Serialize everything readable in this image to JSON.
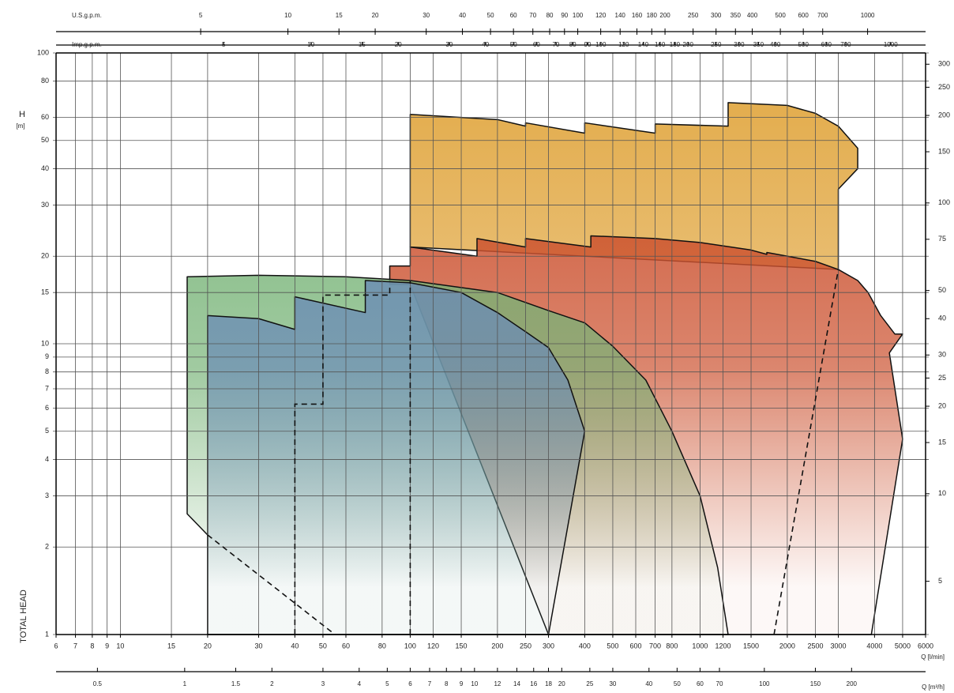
{
  "chart_data": {
    "type": "area",
    "xscale": "log",
    "yscale": "log",
    "x_label": "Q [l/min]",
    "y_label": "H",
    "y_unit": "[m]",
    "y_title": "TOTAL HEAD",
    "xlim": [
      6,
      6000
    ],
    "xticks": [
      6,
      7,
      8,
      9,
      10,
      15,
      20,
      30,
      40,
      50,
      60,
      80,
      100,
      120,
      150,
      200,
      250,
      300,
      400,
      500,
      600,
      700,
      800,
      1000,
      1200,
      1500,
      2000,
      2500,
      3000,
      4000,
      5000,
      6000
    ],
    "ylim": [
      1,
      100
    ],
    "yticks": [
      1,
      2,
      3,
      4,
      5,
      6,
      7,
      8,
      9,
      10,
      15,
      20,
      30,
      40,
      50,
      60,
      80,
      100
    ],
    "y2lim": [
      3.28,
      328
    ],
    "y2ticks": [
      5,
      10,
      15,
      20,
      25,
      30,
      40,
      50,
      75,
      100,
      150,
      200,
      250,
      300
    ],
    "grid": true,
    "extra_x_axes": [
      {
        "label": "U.S.g.p.m.",
        "lim": [
          1.585,
          1585
        ],
        "ticks": [
          5,
          10,
          15,
          20,
          30,
          40,
          50,
          60,
          70,
          80,
          90,
          100,
          120,
          140,
          160,
          180,
          200,
          250,
          300,
          350,
          400,
          500,
          600,
          700,
          1000
        ]
      },
      {
        "label": "Imp.g.p.m.",
        "lim": [
          1.32,
          1320
        ],
        "ticks": [
          5,
          10,
          15,
          20,
          30,
          40,
          50,
          60,
          70,
          80,
          90,
          100,
          120,
          140,
          160,
          180,
          200,
          250,
          300,
          350,
          400,
          500,
          600,
          700,
          1000
        ]
      },
      {
        "label": "Q [m³/h]",
        "lim": [
          0.36,
          360
        ],
        "ticks": [
          0.5,
          1,
          1.5,
          2,
          3,
          4,
          5,
          6,
          7,
          8,
          9,
          10,
          12,
          14,
          16,
          18,
          20,
          25,
          30,
          40,
          50,
          60,
          70,
          100,
          150,
          200
        ]
      }
    ],
    "series": [
      {
        "color": "#e3ad4e",
        "x": [
          100,
          100,
          200,
          250,
          250,
          400,
          400,
          700,
          700,
          1250,
          1250,
          2000,
          2500,
          3000,
          3500,
          3500,
          3000,
          3000
        ],
        "y": [
          21.5,
          61.5,
          59,
          56,
          57.5,
          53,
          57.5,
          53,
          57,
          56,
          67.5,
          66,
          62,
          56,
          47,
          40,
          34,
          18
        ]
      },
      {
        "color": "#cc5230",
        "x": [
          85,
          85,
          100,
          100,
          170,
          170,
          250,
          250,
          420,
          420,
          700,
          1000,
          1500,
          1700,
          1700,
          2500,
          3000,
          3500,
          3800,
          4200,
          4700,
          5000,
          4500,
          5000,
          3900,
          300,
          100
        ],
        "y": [
          16,
          18.5,
          18.5,
          21.5,
          20,
          23,
          21.5,
          23,
          21.5,
          23.5,
          23,
          22.3,
          21,
          20.3,
          20.6,
          19.2,
          18,
          16.5,
          15,
          12.5,
          10.8,
          10.8,
          9.3,
          4.7,
          1,
          1,
          16
        ]
      },
      {
        "color": "#78b478",
        "x": [
          17,
          17,
          30,
          60,
          100,
          200,
          300,
          400,
          500,
          650,
          800,
          1000,
          1150,
          1250,
          20,
          20
        ],
        "y": [
          2.6,
          17,
          17.2,
          17,
          16.5,
          15,
          13,
          11.8,
          9.8,
          7.5,
          5,
          3,
          1.7,
          1,
          1,
          2.2
        ]
      },
      {
        "color": "#6a8bb6",
        "x": [
          20,
          20,
          30,
          40,
          40,
          70,
          70,
          100,
          150,
          200,
          250,
          300,
          350,
          400,
          300
        ],
        "y": [
          1,
          12.5,
          12.2,
          11.2,
          14.5,
          12.8,
          16.5,
          16.2,
          15,
          12.8,
          11,
          9.7,
          7.5,
          5,
          1
        ]
      },
      {
        "color": "#111111",
        "dash": true,
        "x": [
          20,
          55
        ],
        "y": [
          2.2,
          1
        ]
      },
      {
        "color": "#111111",
        "dash": true,
        "x": [
          40,
          40,
          50,
          50,
          85,
          85
        ],
        "y": [
          1,
          6.2,
          6.2,
          14.7,
          14.7,
          16
        ]
      },
      {
        "color": "#111111",
        "dash": true,
        "x": [
          100,
          100
        ],
        "y": [
          1,
          16.5
        ]
      },
      {
        "color": "#111111",
        "dash": true,
        "x": [
          1800,
          3000
        ],
        "y": [
          1,
          18
        ]
      }
    ]
  }
}
